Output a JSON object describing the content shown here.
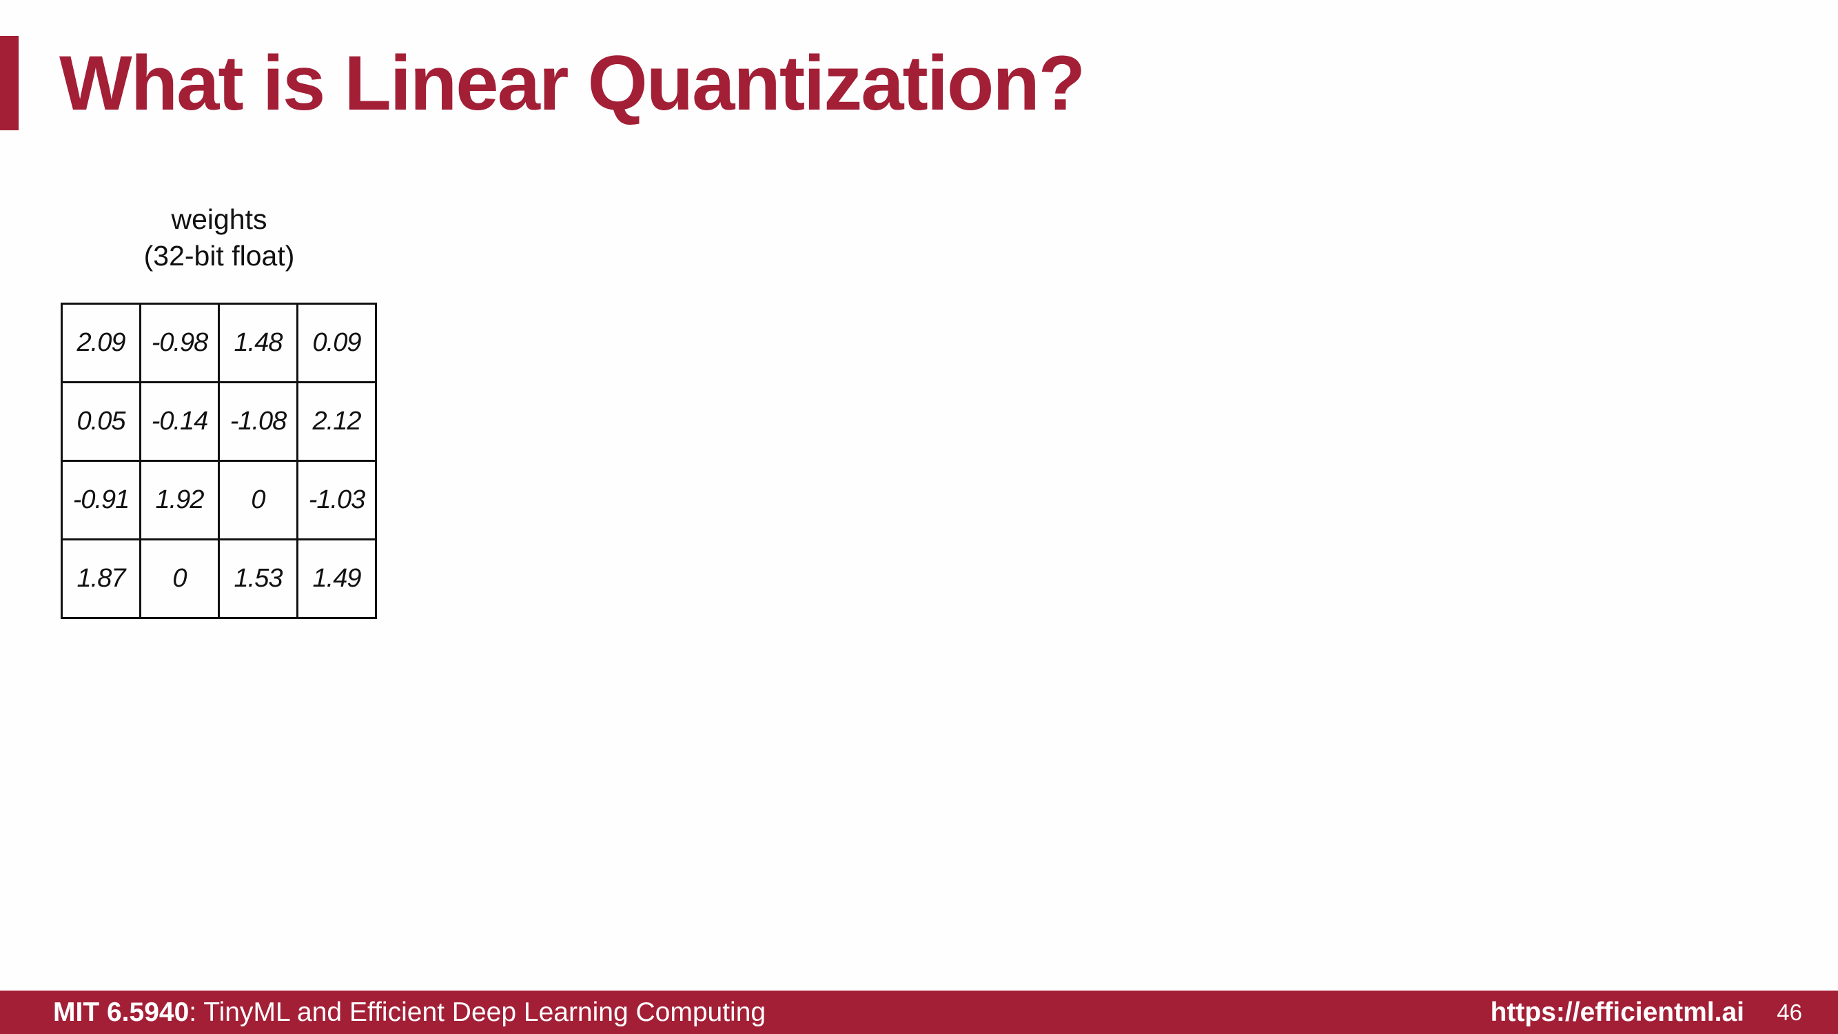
{
  "slide": {
    "title": "What is Linear Quantization?",
    "accent_color": "#a31f36"
  },
  "weights": {
    "caption_line1": "weights",
    "caption_line2": "(32-bit float)",
    "matrix": [
      [
        "2.09",
        "-0.98",
        "1.48",
        "0.09"
      ],
      [
        "0.05",
        "-0.14",
        "-1.08",
        "2.12"
      ],
      [
        "-0.91",
        "1.92",
        "0",
        "-1.03"
      ],
      [
        "1.87",
        "0",
        "1.53",
        "1.49"
      ]
    ]
  },
  "footer": {
    "course_code": "MIT 6.5940",
    "course_title": ": TinyML and Efficient Deep Learning Computing",
    "url": "https://efficientml.ai",
    "page_number": "46"
  }
}
